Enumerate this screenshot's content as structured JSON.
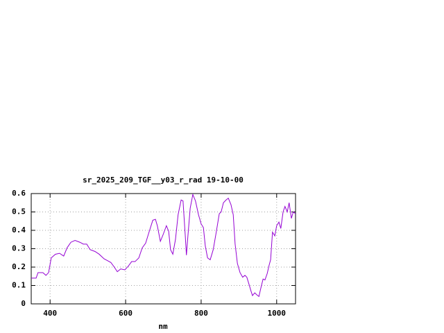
{
  "chart_data": {
    "type": "line",
    "title": "sr_2025_209_TGF__y03_r_rad 19-10-00",
    "xlabel": "nm",
    "x": [
      350,
      363,
      368,
      381,
      389,
      396,
      403,
      414,
      425,
      436,
      445,
      455,
      466,
      479,
      488,
      497,
      506,
      519,
      530,
      543,
      552,
      561,
      570,
      578,
      587,
      598,
      607,
      616,
      625,
      635,
      644,
      653,
      662,
      672,
      679,
      684,
      692,
      699,
      708,
      714,
      719,
      725,
      732,
      739,
      747,
      752,
      758,
      761,
      765,
      771,
      778,
      785,
      793,
      800,
      806,
      811,
      817,
      824,
      832,
      840,
      848,
      853,
      859,
      866,
      872,
      879,
      885,
      890,
      896,
      903,
      910,
      916,
      921,
      927,
      932,
      936,
      942,
      947,
      953,
      958,
      964,
      969,
      975,
      980,
      984,
      989,
      995,
      1000,
      1006,
      1011,
      1017,
      1022,
      1028,
      1033,
      1039,
      1044,
      1050
    ],
    "series": [
      {
        "color": "#9400d3",
        "values": [
          0.14,
          0.14,
          0.17,
          0.17,
          0.155,
          0.17,
          0.25,
          0.27,
          0.275,
          0.26,
          0.305,
          0.335,
          0.345,
          0.335,
          0.325,
          0.325,
          0.295,
          0.285,
          0.27,
          0.245,
          0.235,
          0.225,
          0.2,
          0.175,
          0.19,
          0.185,
          0.205,
          0.23,
          0.23,
          0.25,
          0.305,
          0.33,
          0.39,
          0.455,
          0.46,
          0.425,
          0.34,
          0.375,
          0.425,
          0.395,
          0.295,
          0.27,
          0.35,
          0.485,
          0.565,
          0.56,
          0.37,
          0.265,
          0.37,
          0.52,
          0.595,
          0.56,
          0.485,
          0.435,
          0.415,
          0.315,
          0.25,
          0.24,
          0.295,
          0.39,
          0.49,
          0.5,
          0.55,
          0.565,
          0.575,
          0.54,
          0.485,
          0.325,
          0.22,
          0.17,
          0.145,
          0.155,
          0.145,
          0.105,
          0.07,
          0.045,
          0.06,
          0.05,
          0.04,
          0.085,
          0.135,
          0.13,
          0.165,
          0.21,
          0.24,
          0.39,
          0.37,
          0.425,
          0.445,
          0.41,
          0.5,
          0.53,
          0.5,
          0.55,
          0.465,
          0.5,
          0.49
        ]
      }
    ],
    "xlim": [
      350,
      1050
    ],
    "ylim": [
      0,
      0.6
    ],
    "xticks": [
      400,
      600,
      800,
      1000
    ],
    "yticks": [
      0,
      0.1,
      0.2,
      0.3,
      0.4,
      0.5,
      0.6
    ],
    "grid": true
  }
}
